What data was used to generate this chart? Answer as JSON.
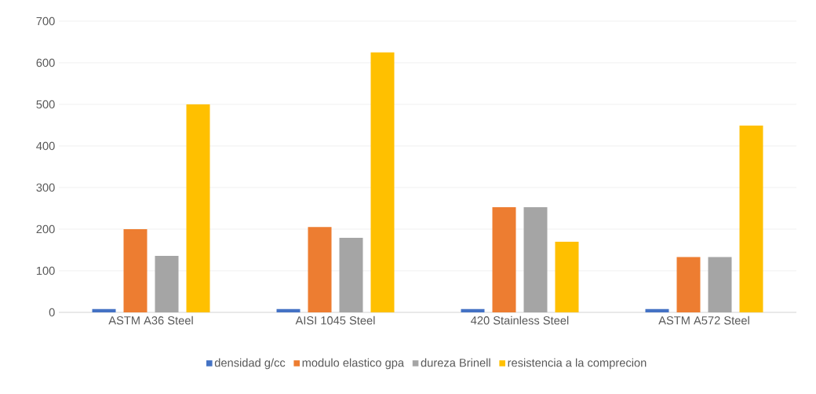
{
  "chart_data": {
    "type": "bar",
    "categories": [
      "ASTM A36 Steel",
      "AISI 1045 Steel",
      "420 Stainless Steel",
      "ASTM A572 Steel"
    ],
    "series": [
      {
        "name": "densidad g/cc",
        "color": "#4472c4",
        "values": [
          8,
          8,
          8,
          8
        ]
      },
      {
        "name": "modulo elastico gpa",
        "color": "#ed7d31",
        "values": [
          200,
          205,
          253,
          133
        ]
      },
      {
        "name": "dureza Brinell",
        "color": "#a5a5a5",
        "values": [
          136,
          179,
          253,
          133
        ]
      },
      {
        "name": "resistencia a la comprecion",
        "color": "#ffc000",
        "values": [
          500,
          625,
          170,
          449
        ]
      }
    ],
    "ylim": [
      0,
      700
    ],
    "yticks": [
      0,
      100,
      200,
      300,
      400,
      500,
      600,
      700
    ],
    "grid": "y",
    "legend": "bottom"
  }
}
